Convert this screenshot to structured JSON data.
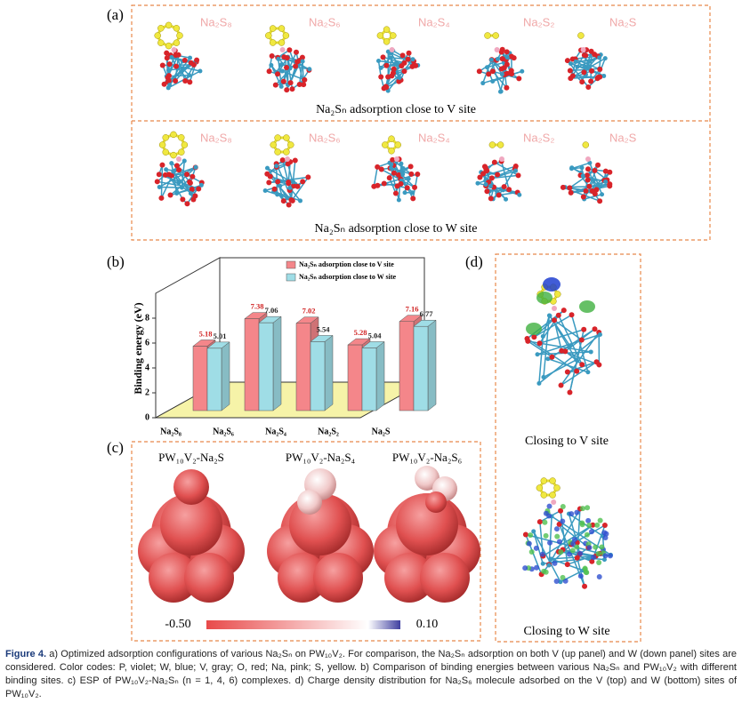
{
  "panel_labels": [
    "(a)",
    "(b)",
    "(c)",
    "(d)"
  ],
  "panel_a": {
    "species": [
      "Na₂S₈",
      "Na₂S₆",
      "Na₂S₄",
      "Na₂S₂",
      "Na₂S"
    ],
    "captions": [
      "Na₂Sₙ adsorption close to V site",
      "Na₂Sₙ adsorption close to W site"
    ]
  },
  "chart_data": {
    "type": "bar",
    "y_label": "Binding energy (eV)",
    "categories": [
      "Na₂S₈",
      "Na₂S₆",
      "Na₂S₄",
      "Na₂S₂",
      "Na₂S"
    ],
    "series": [
      {
        "name": "Na₂Sₙ adsorption close to V site",
        "color": "#f4868a",
        "values": [
          5.18,
          7.38,
          7.02,
          5.28,
          7.16
        ]
      },
      {
        "name": "Na₂Sₙ adsorption close to W site",
        "color": "#9fdde6",
        "values": [
          5.01,
          7.06,
          5.54,
          5.04,
          6.77
        ]
      }
    ],
    "ylim": [
      0,
      10
    ],
    "yticks": [
      0,
      2,
      4,
      6,
      8
    ],
    "legend": "top-right"
  },
  "panel_c": {
    "titles": [
      "PW₁₀V₂-Na₂S",
      "PW₁₀V₂-Na₂S₄",
      "PW₁₀V₂-Na₂S₆"
    ],
    "colorbar": [
      {
        "value": -0.5,
        "label": "-0.50"
      },
      {
        "value": 0.1,
        "label": "0.10"
      }
    ]
  },
  "panel_d": {
    "captions": [
      "Closing to V site",
      "Closing to W site"
    ]
  },
  "caption": {
    "label": "Figure 4.",
    "text": "a) Optimized adsorption configurations of various Na₂Sₙ on PW₁₀V₂. For comparison, the Na₂Sₙ adsorption on both V (up panel) and W (down panel) sites are considered. Color codes: P, violet; W, blue; V, gray; O, red; Na, pink; S, yellow. b) Comparison of binding energies between various Na₂Sₙ and PW₁₀V₂ with different binding sites. c) ESP of PW₁₀V₂-Na₂Sₙ (n = 1, 4, 6) complexes. d) Charge density distribution for Na₂S₆ molecule adsorbed on the V (top) and W (bottom) sites of PW₁₀V₂."
  }
}
